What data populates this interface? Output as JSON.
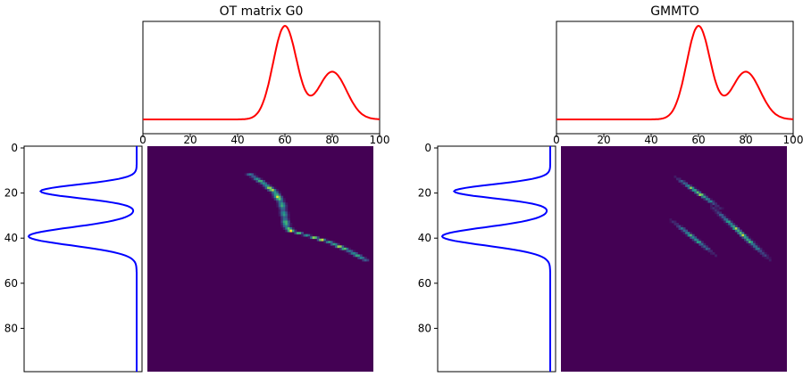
{
  "chart_data": [
    {
      "type": "line",
      "panel": "source-marginal",
      "title": "OT matrix G0",
      "xlim": [
        0,
        100
      ],
      "xticks": [
        "0",
        "20",
        "40",
        "60",
        "80",
        "100"
      ],
      "components": [
        {
          "mean": 60,
          "std": 5,
          "weight": 0.62
        },
        {
          "mean": 80,
          "std": 6,
          "weight": 0.38
        }
      ],
      "color": "#ff0000"
    },
    {
      "type": "line",
      "panel": "target-marginal",
      "orientation": "vertical",
      "ylim": [
        100,
        0
      ],
      "yticks": [
        "0",
        "20",
        "40",
        "60",
        "80"
      ],
      "components": [
        {
          "mean": 20,
          "std": 3,
          "weight": 0.4
        },
        {
          "mean": 40,
          "std": 4,
          "weight": 0.6
        }
      ],
      "color": "#0000ff"
    },
    {
      "type": "heatmap",
      "panel": "ot-plan",
      "colormap": "viridis",
      "structure": "monotone transport ridge from (45,12) through (59,25), (60,35), (70,40) to (96,50)"
    },
    {
      "type": "line",
      "panel": "source-marginal",
      "title": "GMMTO",
      "xlim": [
        0,
        100
      ],
      "xticks": [
        "0",
        "20",
        "40",
        "60",
        "80",
        "100"
      ],
      "components": [
        {
          "mean": 60,
          "std": 5,
          "weight": 0.62
        },
        {
          "mean": 80,
          "std": 6,
          "weight": 0.38
        }
      ],
      "color": "#ff0000"
    },
    {
      "type": "line",
      "panel": "target-marginal",
      "orientation": "vertical",
      "ylim": [
        100,
        0
      ],
      "yticks": [
        "0",
        "20",
        "40",
        "60",
        "80"
      ],
      "components": [
        {
          "mean": 20,
          "std": 3,
          "weight": 0.4
        },
        {
          "mean": 40,
          "std": 4,
          "weight": 0.6
        }
      ],
      "color": "#0000ff"
    },
    {
      "type": "heatmap",
      "panel": "gmm-plan",
      "colormap": "viridis",
      "structure": "three diagonal bands of component couplings",
      "bands": [
        {
          "x": [
            50,
            70
          ],
          "y": [
            13,
            27
          ],
          "peak": 1.0
        },
        {
          "x": [
            48,
            68
          ],
          "y": [
            32,
            48
          ],
          "peak": 0.75
        },
        {
          "x": [
            66,
            92
          ],
          "y": [
            26,
            50
          ],
          "peak": 0.95
        }
      ]
    }
  ]
}
